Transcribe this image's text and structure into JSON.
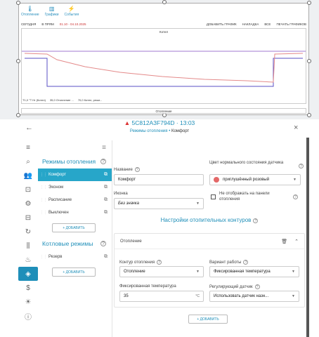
{
  "top_preview": {
    "toolbar": [
      {
        "label": "Отопление",
        "icon": "thermometer-icon"
      },
      {
        "label": "Графики",
        "icon": "chart-icon"
      },
      {
        "label": "События",
        "icon": "bolt-icon"
      }
    ],
    "range_tabs": [
      "СЕГОДНЯ",
      "В ПРЯМ"
    ],
    "date_range": "01.10 - 04.10.2025",
    "actions": [
      "ДОБАВИТЬ ГРАФИК",
      "НАКЛАДКА",
      "ВСЕ",
      "ПЕЧАТЬ ГРАФИКОВ"
    ],
    "chart1_title": "Котел",
    "chart2_title": "Отопление",
    "legend": [
      "T1,0 °Т Hr (Котел)",
      "35,0 Отопление ...",
      "70,0 Котел, режи..."
    ]
  },
  "header": {
    "device": "5C812A3F794D · 13:03",
    "crumb_section": "Режимы отопления",
    "crumb_current": "Комфорт"
  },
  "modes_panel": {
    "heating_title": "Режимы отопления",
    "heating_items": [
      "Комфорт",
      "Эконом",
      "Расписание",
      "Выключен"
    ],
    "add_label": "+ ДОБАВИТЬ",
    "boiler_title": "Котловые режимы",
    "boiler_items": [
      "Резерв"
    ],
    "add_label2": "+ ДОБАВИТЬ"
  },
  "form": {
    "name_label": "Название",
    "name_value": "Комфорт",
    "color_label": "Цвет нормального состояния датчика",
    "color_value": "приглушённый розовый",
    "color_hex": "#e46868",
    "icon_label": "Иконка",
    "icon_value": "Без значка",
    "hide_label": "Не отображать на панели отопления",
    "contours_title": "Настройки отопительных контуров",
    "card_title": "Отопление",
    "contour_label": "Контур отопления",
    "contour_value": "Отопление",
    "mode_label": "Вариант работы",
    "mode_value": "Фиксированная температура",
    "temp_label": "Фиксированная температура",
    "temp_value": "35",
    "temp_unit": "°C",
    "sensor_label": "Регулирующий датчик",
    "sensor_value": "Использовать датчик назн...",
    "add_label": "+ ДОБАВИТЬ"
  },
  "accent_color": "#1f8fb9"
}
